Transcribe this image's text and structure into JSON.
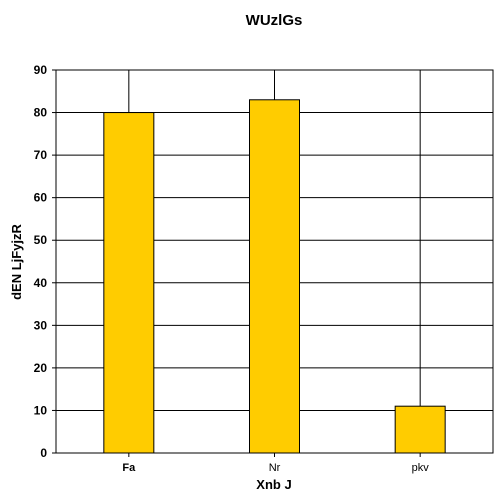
{
  "chart_data": {
    "type": "bar",
    "title": "WUzlGs",
    "xlabel": "Xnb J",
    "ylabel": "dEN LjFyjzR",
    "categories": [
      "Fa",
      "Nr",
      "pkv"
    ],
    "values": [
      80,
      83,
      11
    ],
    "ylim": [
      0,
      90
    ],
    "yticks": [
      "0",
      "10",
      "20",
      "30",
      "40",
      "50",
      "60",
      "70",
      "80",
      "90"
    ],
    "grid": true,
    "legend": "none",
    "bar_color": "#ffcc00",
    "edge_color": "#000000"
  }
}
